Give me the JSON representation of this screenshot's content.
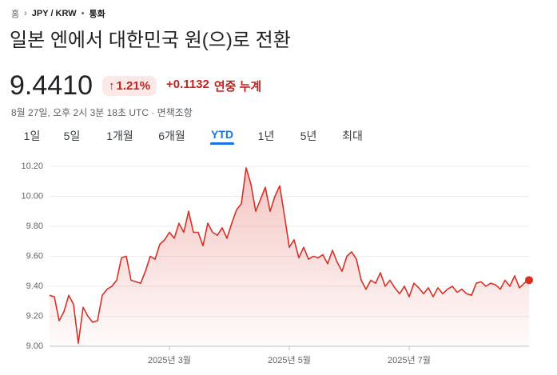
{
  "breadcrumb": [
    "홈",
    "JPY / KRW",
    "통화"
  ],
  "title": "일본 엔에서 대한민국 원(으)로 전환",
  "quote": {
    "price": "9.4410",
    "change_percent": "1.21%",
    "change": "+0.1132",
    "period": "연중 누계"
  },
  "timestamp": "8월 27일, 오후 2시 3분 18초 UTC",
  "disclaimer": "면책조항",
  "tabs": [
    "1일",
    "5일",
    "1개월",
    "6개월",
    "YTD",
    "1년",
    "5년",
    "최대"
  ],
  "active_tab": 4,
  "chart_data": {
    "type": "line",
    "color": "#d93025",
    "grid": true,
    "ylim": [
      9.0,
      10.2
    ],
    "yticks": [
      {
        "value": 9.0,
        "label": "9.00"
      },
      {
        "value": 9.2,
        "label": "9.20"
      },
      {
        "value": 9.4,
        "label": "9.40"
      },
      {
        "value": 9.6,
        "label": "9.60"
      },
      {
        "value": 9.8,
        "label": "9.80"
      },
      {
        "value": 10.0,
        "label": "10.00"
      },
      {
        "value": 10.2,
        "label": "10.20"
      }
    ],
    "categories": [
      null,
      null,
      null,
      null,
      null,
      null,
      null,
      null,
      null,
      null,
      null,
      null,
      null,
      null,
      null,
      null,
      null,
      null,
      null,
      null,
      null,
      null,
      null,
      null,
      null,
      "2025년 3월",
      null,
      null,
      null,
      null,
      null,
      null,
      null,
      null,
      null,
      null,
      null,
      null,
      null,
      null,
      null,
      null,
      null,
      null,
      null,
      null,
      null,
      null,
      null,
      null,
      "2025년 5월",
      null,
      null,
      null,
      null,
      null,
      null,
      null,
      null,
      null,
      null,
      null,
      null,
      null,
      null,
      null,
      null,
      null,
      null,
      null,
      null,
      null,
      null,
      null,
      null,
      "2025년 7월",
      null,
      null,
      null,
      null,
      null,
      null,
      null,
      null,
      null,
      null,
      null,
      null,
      null,
      null,
      null,
      null,
      null,
      null,
      null,
      null,
      null,
      null,
      null,
      null,
      null
    ],
    "values": [
      9.34,
      9.33,
      9.17,
      9.23,
      9.34,
      9.28,
      9.02,
      9.26,
      9.2,
      9.16,
      9.17,
      9.34,
      9.38,
      9.4,
      9.44,
      9.59,
      9.6,
      9.44,
      9.43,
      9.42,
      9.5,
      9.6,
      9.58,
      9.68,
      9.71,
      9.76,
      9.72,
      9.82,
      9.76,
      9.9,
      9.76,
      9.76,
      9.67,
      9.82,
      9.76,
      9.74,
      9.79,
      9.72,
      9.82,
      9.91,
      9.95,
      10.19,
      10.08,
      9.9,
      9.98,
      10.06,
      9.9,
      10.0,
      10.07,
      9.87,
      9.66,
      9.71,
      9.59,
      9.66,
      9.58,
      9.6,
      9.59,
      9.61,
      9.55,
      9.64,
      9.56,
      9.5,
      9.6,
      9.63,
      9.58,
      9.44,
      9.38,
      9.44,
      9.42,
      9.49,
      9.4,
      9.44,
      9.39,
      9.35,
      9.4,
      9.33,
      9.42,
      9.39,
      9.35,
      9.39,
      9.33,
      9.39,
      9.35,
      9.38,
      9.4,
      9.36,
      9.38,
      9.35,
      9.34,
      9.42,
      9.43,
      9.4,
      9.42,
      9.41,
      9.38,
      9.44,
      9.4,
      9.47,
      9.39,
      9.42,
      9.441
    ]
  }
}
